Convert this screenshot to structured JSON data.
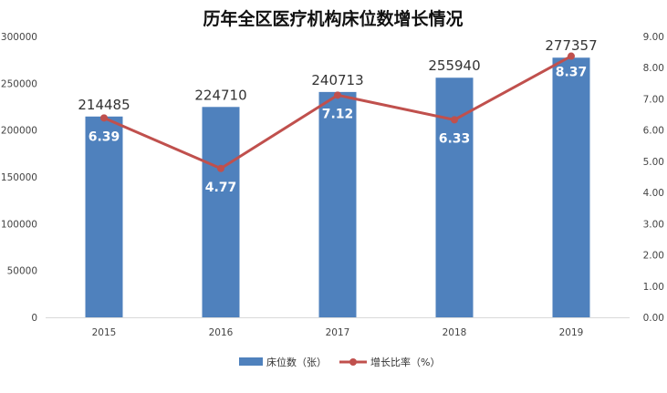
{
  "chart_data": {
    "type": "bar",
    "title": "历年全区医疗机构床位数增长情况",
    "categories": [
      "2015",
      "2016",
      "2017",
      "2018",
      "2019"
    ],
    "series": [
      {
        "name": "床位数（张）",
        "type": "bar",
        "axis": "left",
        "color": "#4f81bd",
        "values": [
          214485,
          224710,
          240713,
          255940,
          277357
        ],
        "labels": [
          "214485",
          "224710",
          "240713",
          "255940",
          "277357"
        ]
      },
      {
        "name": "增长比率（%）",
        "type": "line",
        "axis": "right",
        "color": "#c0504d",
        "values": [
          6.39,
          4.77,
          7.12,
          6.33,
          8.37
        ],
        "labels": [
          "6.39",
          "4.77",
          "7.12",
          "6.33",
          "8.37"
        ]
      }
    ],
    "y_left": {
      "min": 0,
      "max": 300000,
      "ticks": [
        "0",
        "50000",
        "100000",
        "150000",
        "200000",
        "250000",
        "300000"
      ]
    },
    "y_right": {
      "min": 0,
      "max": 9,
      "ticks": [
        "0.00",
        "1.00",
        "2.00",
        "3.00",
        "4.00",
        "5.00",
        "6.00",
        "7.00",
        "8.00",
        "9.00"
      ]
    },
    "grid": false,
    "legend_position": "bottom"
  }
}
